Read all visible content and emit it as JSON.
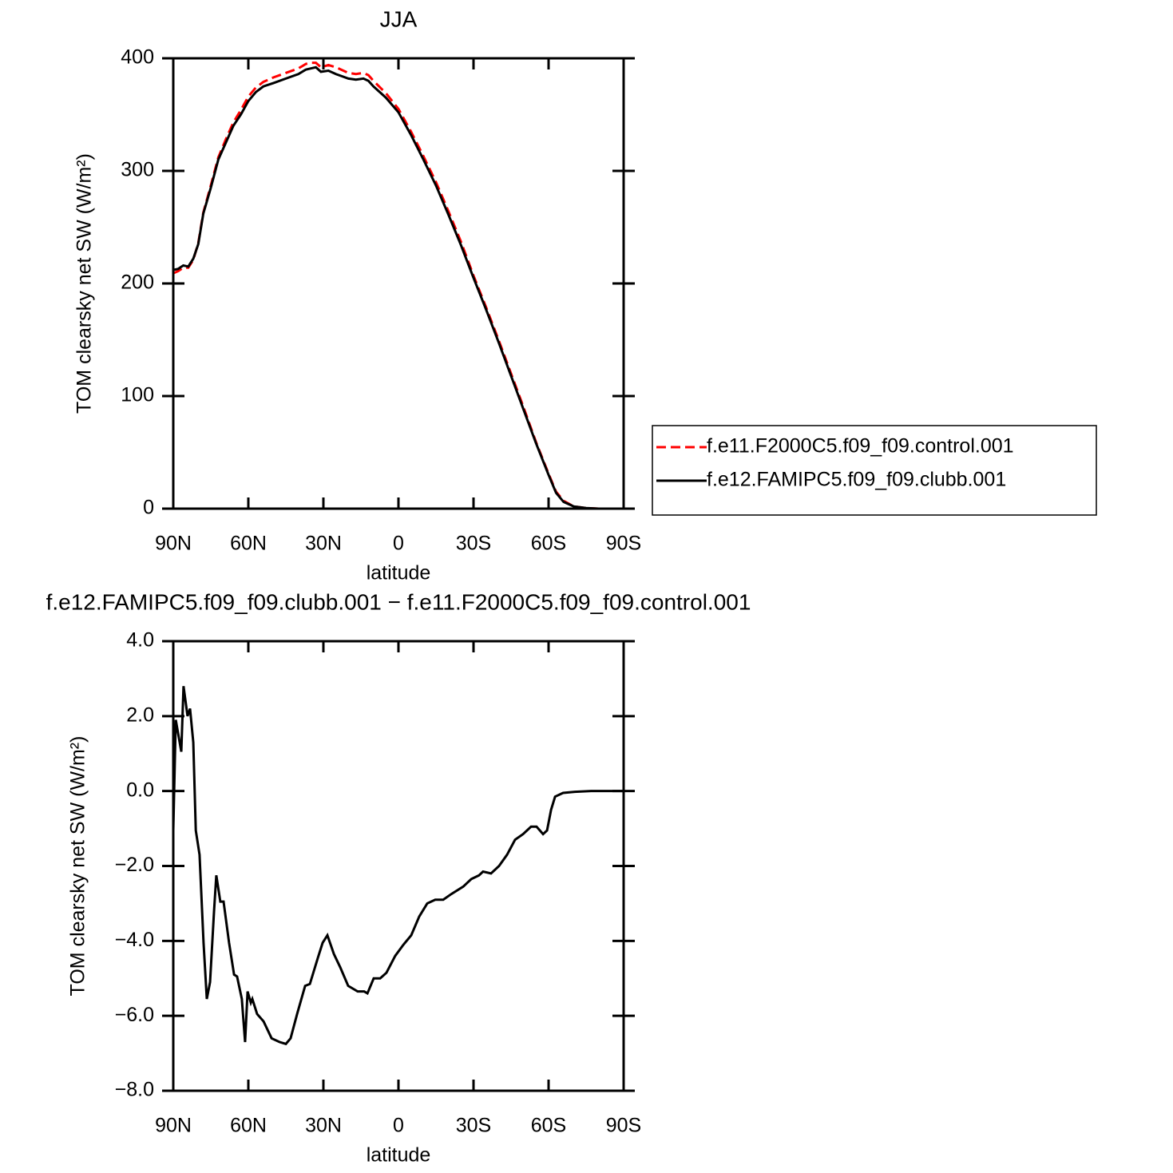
{
  "chart_data": [
    {
      "type": "line",
      "title": "JJA",
      "xlabel": "latitude",
      "ylabel": "TOM clearsky net SW (W/m²)",
      "x": [
        90,
        88,
        86,
        84,
        82,
        80,
        78,
        75,
        72,
        69,
        66,
        63,
        60,
        57,
        54,
        50,
        45,
        40,
        37,
        35,
        33,
        31,
        28,
        25,
        20,
        17,
        14,
        12,
        10,
        5,
        0,
        -5,
        -10,
        -15,
        -20,
        -25,
        -30,
        -35,
        -40,
        -45,
        -50,
        -55,
        -60,
        -63,
        -66,
        -70,
        -75,
        -80,
        -90
      ],
      "series": [
        {
          "name": "f.e11.F2000C5.f09_f09.control.001",
          "color": "#ff0000",
          "linestyle": "dashed",
          "values": [
            209,
            211,
            214,
            214,
            221,
            236,
            263,
            287,
            312,
            328,
            343,
            354,
            366,
            374,
            379,
            383,
            387,
            391,
            395,
            396,
            396,
            392,
            394,
            392,
            387,
            386,
            387,
            385,
            380,
            369,
            355,
            335,
            313,
            290,
            264,
            237,
            207,
            179,
            150,
            120,
            90,
            59,
            31,
            15,
            7,
            2,
            0.5,
            0,
            0
          ]
        },
        {
          "name": "f.e12.FAMIPC5.f09_f09.clubb.001",
          "color": "#000000",
          "linestyle": "solid",
          "values": [
            212,
            213,
            216,
            215,
            222,
            235,
            262,
            285,
            310,
            325,
            340,
            350,
            362,
            370,
            375,
            378,
            382,
            386,
            390,
            391,
            392,
            388,
            389,
            386,
            382,
            381,
            382,
            380,
            375,
            365,
            352,
            332,
            310,
            287,
            261,
            234,
            205,
            177,
            148,
            118,
            88,
            58,
            30,
            14,
            6,
            2,
            0.5,
            0,
            0
          ]
        }
      ],
      "xlim": [
        90,
        -90
      ],
      "xticks": [
        {
          "value": 90,
          "label": "90N"
        },
        {
          "value": 60,
          "label": "60N"
        },
        {
          "value": 30,
          "label": "30N"
        },
        0,
        {
          "value": -30,
          "label": "30S"
        },
        {
          "value": -60,
          "label": "60S"
        },
        {
          "value": -90,
          "label": "90S"
        }
      ],
      "ylim": [
        0,
        400
      ],
      "yticks": [
        0,
        100,
        200,
        300,
        400
      ],
      "legend": "right"
    },
    {
      "type": "line",
      "title": "f.e12.FAMIPC5.f09_f09.clubb.001 − f.e11.F2000C5.f09_f09.control.001",
      "xlabel": "latitude",
      "ylabel": "TOM clearsky net SW (W/m²)",
      "x": [
        90,
        89,
        86.8,
        85.9,
        84.3,
        83.3,
        82,
        81,
        79.5,
        77.9,
        76.6,
        75.3,
        73.7,
        72.8,
        71.2,
        69.9,
        67.7,
        65.7,
        64.5,
        62.6,
        61.3,
        60.3,
        59,
        58.4,
        56.5,
        53.9,
        50.7,
        47.5,
        45,
        43.1,
        40.5,
        37.3,
        35.4,
        32.2,
        30.3,
        28.4,
        25.8,
        23.3,
        20.1,
        16.3,
        13.7,
        12.4,
        9.9,
        7.3,
        4.8,
        1.3,
        -2,
        -5.1,
        -8.3,
        -11.5,
        -14.7,
        -17.9,
        -21.1,
        -25.9,
        -29.1,
        -32.2,
        -33.8,
        -37,
        -40.2,
        -43.4,
        -46.6,
        -49.8,
        -53,
        -55.2,
        -57.8,
        -59.4,
        -61,
        -62.6,
        -65.8,
        -70.5,
        -77,
        -90
      ],
      "series": [
        {
          "color": "#000000",
          "linestyle": "solid",
          "values": [
            -1.05,
            1.9,
            1.05,
            2.8,
            2.0,
            2.2,
            1.3,
            -1.05,
            -1.7,
            -4.05,
            -5.55,
            -5.1,
            -3.2,
            -2.25,
            -2.95,
            -2.95,
            -4.05,
            -4.9,
            -4.95,
            -5.55,
            -6.7,
            -5.35,
            -5.65,
            -5.55,
            -5.95,
            -6.15,
            -6.6,
            -6.7,
            -6.75,
            -6.6,
            -5.95,
            -5.2,
            -5.15,
            -4.45,
            -4.05,
            -3.85,
            -4.35,
            -4.7,
            -5.2,
            -5.35,
            -5.35,
            -5.4,
            -5.0,
            -5.0,
            -4.85,
            -4.4,
            -4.1,
            -3.85,
            -3.35,
            -3.0,
            -2.9,
            -2.9,
            -2.75,
            -2.55,
            -2.35,
            -2.25,
            -2.15,
            -2.2,
            -2.0,
            -1.7,
            -1.3,
            -1.15,
            -0.95,
            -0.95,
            -1.15,
            -1.05,
            -0.5,
            -0.15,
            -0.05,
            -0.02,
            0,
            0
          ]
        }
      ],
      "xlim": [
        90,
        -90
      ],
      "xticks": [
        {
          "value": 90,
          "label": "90N"
        },
        {
          "value": 60,
          "label": "60N"
        },
        {
          "value": 30,
          "label": "30N"
        },
        0,
        {
          "value": -30,
          "label": "30S"
        },
        {
          "value": -60,
          "label": "60S"
        },
        {
          "value": -90,
          "label": "90S"
        }
      ],
      "ylim": [
        -8,
        4
      ],
      "yticks": [
        {
          "value": 4,
          "label": "4.0"
        },
        {
          "value": 2,
          "label": "2.0"
        },
        {
          "value": 0,
          "label": "0.0"
        },
        {
          "value": -2,
          "label": "−2.0"
        },
        {
          "value": -4,
          "label": "−4.0"
        },
        {
          "value": -6,
          "label": "−6.0"
        },
        {
          "value": -8,
          "label": "−8.0"
        }
      ]
    }
  ]
}
